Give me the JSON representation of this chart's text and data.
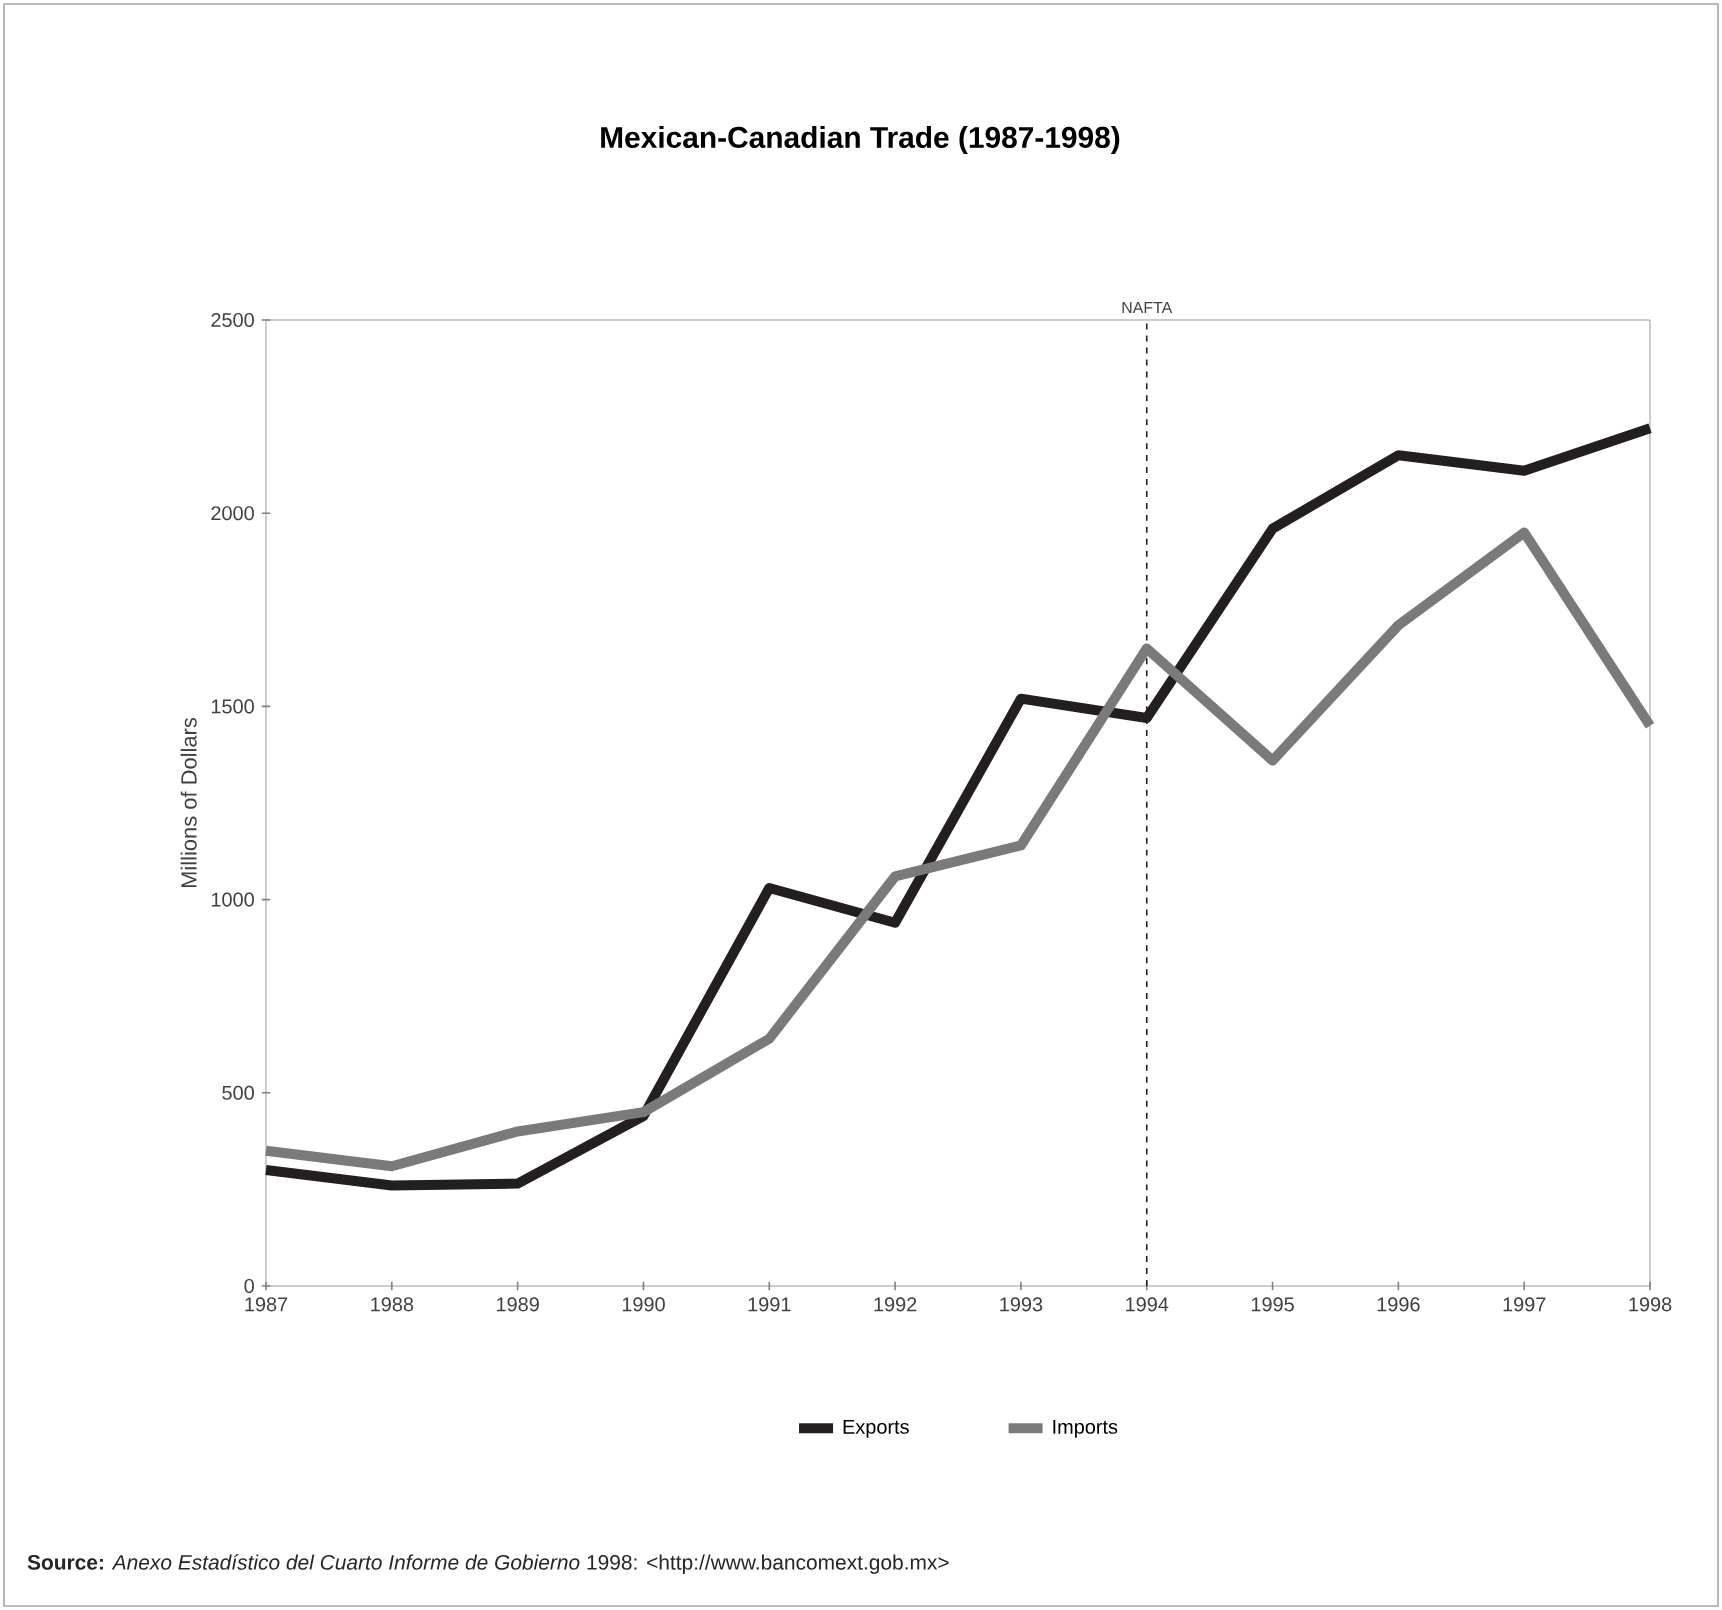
{
  "chart_data": {
    "type": "line",
    "title": "Mexican-Canadian Trade (1987-1998)",
    "ylabel": "Millions of Dollars",
    "x": [
      1987,
      1988,
      1989,
      1990,
      1991,
      1992,
      1993,
      1994,
      1995,
      1996,
      1997,
      1998
    ],
    "series": [
      {
        "name": "Exports",
        "color": "#231f20",
        "values": [
          300,
          260,
          265,
          440,
          1030,
          940,
          1520,
          1470,
          1960,
          2150,
          2110,
          2220
        ]
      },
      {
        "name": "Imports",
        "color": "#7a7a7a",
        "values": [
          350,
          310,
          400,
          450,
          640,
          1060,
          1140,
          1650,
          1360,
          1710,
          1950,
          1450
        ]
      }
    ],
    "xlim": [
      1987,
      1998
    ],
    "xticks": [
      1987,
      1988,
      1989,
      1990,
      1991,
      1992,
      1993,
      1994,
      1995,
      1996,
      1997,
      1998
    ],
    "ylim": [
      0,
      2500
    ],
    "yticks": [
      0,
      500,
      1000,
      1500,
      2000,
      2500
    ],
    "ref_lines": [
      {
        "axis": "x",
        "value": 1994,
        "label": "NAFTA",
        "line_style": "dashed",
        "color": "#231f20"
      }
    ],
    "grid": false,
    "legend": "bottom",
    "marker": "none",
    "line_style": "solid",
    "annotations": [
      "**Source:** *Anexo Estadístico del Cuarto Informe de Gobierno* 1998: <http://www.bancomext.gob.mx>"
    ]
  }
}
